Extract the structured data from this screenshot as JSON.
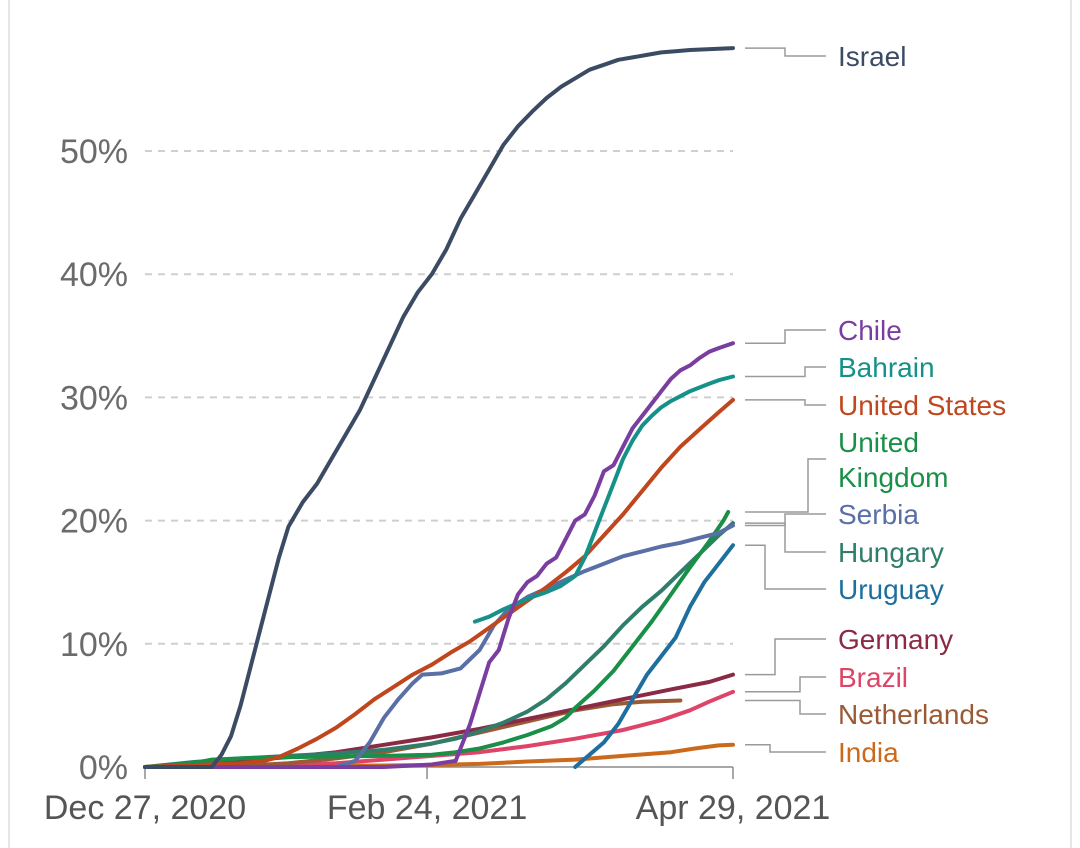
{
  "chart_data": {
    "type": "line",
    "x_labels": [
      "Dec 27, 2020",
      "Feb 24, 2021",
      "Apr 29, 2021"
    ],
    "x_label_days": [
      0,
      59,
      123
    ],
    "xlim": [
      0,
      123
    ],
    "ylim": [
      0,
      58
    ],
    "y_ticks": [
      {
        "value": 0,
        "label": "0%"
      },
      {
        "value": 10,
        "label": "10%"
      },
      {
        "value": 20,
        "label": "20%"
      },
      {
        "value": 30,
        "label": "30%"
      },
      {
        "value": 40,
        "label": "40%"
      },
      {
        "value": 50,
        "label": "50%"
      }
    ],
    "grid": true,
    "series": [
      {
        "key": "israel",
        "name": "Israel",
        "color": "#3b4b63",
        "points": [
          [
            0,
            0
          ],
          [
            6,
            0
          ],
          [
            14,
            0
          ],
          [
            16,
            1
          ],
          [
            18,
            2.5
          ],
          [
            20,
            5
          ],
          [
            22,
            8
          ],
          [
            24,
            11
          ],
          [
            26,
            14
          ],
          [
            28,
            17
          ],
          [
            30,
            19.5
          ],
          [
            33,
            21.5
          ],
          [
            36,
            23
          ],
          [
            39,
            25
          ],
          [
            42,
            27
          ],
          [
            45,
            29
          ],
          [
            48,
            31.5
          ],
          [
            51,
            34
          ],
          [
            54,
            36.5
          ],
          [
            57,
            38.5
          ],
          [
            60,
            40
          ],
          [
            63,
            42
          ],
          [
            66,
            44.5
          ],
          [
            69,
            46.5
          ],
          [
            72,
            48.5
          ],
          [
            75,
            50.5
          ],
          [
            78,
            52
          ],
          [
            81,
            53.2
          ],
          [
            84,
            54.3
          ],
          [
            87,
            55.2
          ],
          [
            90,
            55.9
          ],
          [
            93,
            56.6
          ],
          [
            96,
            57
          ],
          [
            99,
            57.4
          ],
          [
            102,
            57.6
          ],
          [
            105,
            57.8
          ],
          [
            108,
            58
          ],
          [
            111,
            58.1
          ],
          [
            114,
            58.2
          ],
          [
            117,
            58.25
          ],
          [
            120,
            58.3
          ],
          [
            123,
            58.35
          ]
        ]
      },
      {
        "key": "chile",
        "name": "Chile",
        "color": "#7a3ea0",
        "points": [
          [
            0,
            0
          ],
          [
            50,
            0
          ],
          [
            60,
            0.2
          ],
          [
            65,
            0.5
          ],
          [
            66,
            1.5
          ],
          [
            68,
            3.5
          ],
          [
            70,
            6
          ],
          [
            72,
            8.5
          ],
          [
            74,
            9.5
          ],
          [
            76,
            12
          ],
          [
            78,
            14
          ],
          [
            80,
            15
          ],
          [
            82,
            15.5
          ],
          [
            84,
            16.5
          ],
          [
            86,
            17
          ],
          [
            88,
            18.5
          ],
          [
            90,
            20
          ],
          [
            92,
            20.5
          ],
          [
            94,
            22
          ],
          [
            96,
            24
          ],
          [
            98,
            24.5
          ],
          [
            100,
            26
          ],
          [
            102,
            27.5
          ],
          [
            104,
            28.5
          ],
          [
            106,
            29.5
          ],
          [
            108,
            30.5
          ],
          [
            110,
            31.5
          ],
          [
            112,
            32.2
          ],
          [
            114,
            32.6
          ],
          [
            116,
            33.2
          ],
          [
            118,
            33.7
          ],
          [
            120,
            34
          ],
          [
            123,
            34.4
          ]
        ]
      },
      {
        "key": "bahrain",
        "name": "Bahrain",
        "color": "#16918a",
        "points": [
          [
            69,
            11.8
          ],
          [
            72,
            12.2
          ],
          [
            75,
            12.8
          ],
          [
            78,
            13.3
          ],
          [
            81,
            13.8
          ],
          [
            84,
            14.2
          ],
          [
            87,
            14.7
          ],
          [
            90,
            15.5
          ],
          [
            92,
            17
          ],
          [
            94,
            19
          ],
          [
            96,
            21
          ],
          [
            98,
            23
          ],
          [
            100,
            25
          ],
          [
            102,
            26.5
          ],
          [
            104,
            27.7
          ],
          [
            106,
            28.5
          ],
          [
            108,
            29.2
          ],
          [
            110,
            29.7
          ],
          [
            112,
            30.1
          ],
          [
            114,
            30.5
          ],
          [
            116,
            30.8
          ],
          [
            118,
            31.1
          ],
          [
            120,
            31.4
          ],
          [
            123,
            31.7
          ]
        ]
      },
      {
        "key": "us",
        "name": "United States",
        "color": "#c0461e",
        "points": [
          [
            0,
            0
          ],
          [
            20,
            0.3
          ],
          [
            25,
            0.5
          ],
          [
            28,
            0.8
          ],
          [
            32,
            1.5
          ],
          [
            36,
            2.3
          ],
          [
            40,
            3.2
          ],
          [
            44,
            4.3
          ],
          [
            48,
            5.5
          ],
          [
            52,
            6.5
          ],
          [
            56,
            7.5
          ],
          [
            60,
            8.3
          ],
          [
            64,
            9.3
          ],
          [
            68,
            10.2
          ],
          [
            72,
            11.3
          ],
          [
            76,
            12.4
          ],
          [
            80,
            13.5
          ],
          [
            84,
            14.6
          ],
          [
            88,
            15.8
          ],
          [
            92,
            17.1
          ],
          [
            96,
            18.8
          ],
          [
            100,
            20.5
          ],
          [
            104,
            22.4
          ],
          [
            108,
            24.3
          ],
          [
            112,
            26
          ],
          [
            116,
            27.4
          ],
          [
            120,
            28.8
          ],
          [
            123,
            29.8
          ]
        ]
      },
      {
        "key": "uk",
        "name": "United Kingdom",
        "color": "#1a8f47",
        "points": [
          [
            0,
            0
          ],
          [
            10,
            0.3
          ],
          [
            14,
            0.6
          ],
          [
            20,
            0.7
          ],
          [
            30,
            0.8
          ],
          [
            40,
            0.85
          ],
          [
            50,
            0.9
          ],
          [
            60,
            1.0
          ],
          [
            65,
            1.2
          ],
          [
            70,
            1.5
          ],
          [
            75,
            2.0
          ],
          [
            80,
            2.6
          ],
          [
            85,
            3.3
          ],
          [
            88,
            4.0
          ],
          [
            90,
            4.8
          ],
          [
            94,
            6.2
          ],
          [
            98,
            7.8
          ],
          [
            102,
            9.8
          ],
          [
            106,
            11.8
          ],
          [
            110,
            14.0
          ],
          [
            114,
            16.2
          ],
          [
            118,
            18.3
          ],
          [
            121,
            20.0
          ],
          [
            122,
            20.7
          ]
        ]
      },
      {
        "key": "serbia",
        "name": "Serbia",
        "color": "#5a6fa6",
        "points": [
          [
            0,
            0
          ],
          [
            40,
            0
          ],
          [
            44,
            0.5
          ],
          [
            47,
            2
          ],
          [
            50,
            4
          ],
          [
            53,
            5.5
          ],
          [
            56,
            6.8
          ],
          [
            58,
            7.5
          ],
          [
            62,
            7.6
          ],
          [
            66,
            8.0
          ],
          [
            70,
            9.5
          ],
          [
            73,
            11.5
          ],
          [
            76,
            12.8
          ],
          [
            80,
            13.8
          ],
          [
            84,
            14.5
          ],
          [
            88,
            15.2
          ],
          [
            92,
            15.9
          ],
          [
            96,
            16.5
          ],
          [
            100,
            17.1
          ],
          [
            104,
            17.5
          ],
          [
            108,
            17.9
          ],
          [
            112,
            18.2
          ],
          [
            116,
            18.6
          ],
          [
            120,
            19.0
          ],
          [
            123,
            19.6
          ]
        ]
      },
      {
        "key": "hungary",
        "name": "Hungary",
        "color": "#2f7d6b",
        "points": [
          [
            0,
            0
          ],
          [
            10,
            0.4
          ],
          [
            20,
            0.7
          ],
          [
            30,
            0.9
          ],
          [
            40,
            1.1
          ],
          [
            50,
            1.4
          ],
          [
            60,
            1.9
          ],
          [
            65,
            2.3
          ],
          [
            70,
            2.9
          ],
          [
            75,
            3.6
          ],
          [
            80,
            4.5
          ],
          [
            84,
            5.5
          ],
          [
            88,
            6.8
          ],
          [
            92,
            8.3
          ],
          [
            96,
            9.8
          ],
          [
            100,
            11.5
          ],
          [
            104,
            13
          ],
          [
            108,
            14.3
          ],
          [
            112,
            15.8
          ],
          [
            116,
            17.3
          ],
          [
            120,
            18.8
          ],
          [
            123,
            19.8
          ]
        ]
      },
      {
        "key": "uruguay",
        "name": "Uruguay",
        "color": "#1f6f9e",
        "points": [
          [
            90,
            0
          ],
          [
            93,
            1
          ],
          [
            96,
            2
          ],
          [
            99,
            3.5
          ],
          [
            102,
            5.5
          ],
          [
            105,
            7.5
          ],
          [
            108,
            9
          ],
          [
            111,
            10.5
          ],
          [
            114,
            13
          ],
          [
            117,
            15
          ],
          [
            120,
            16.5
          ],
          [
            123,
            18
          ]
        ]
      },
      {
        "key": "germany",
        "name": "Germany",
        "color": "#8b2a45",
        "points": [
          [
            0,
            0
          ],
          [
            10,
            0.2
          ],
          [
            20,
            0.5
          ],
          [
            30,
            0.8
          ],
          [
            40,
            1.2
          ],
          [
            50,
            1.8
          ],
          [
            60,
            2.4
          ],
          [
            70,
            3.1
          ],
          [
            80,
            3.9
          ],
          [
            90,
            4.7
          ],
          [
            100,
            5.5
          ],
          [
            110,
            6.3
          ],
          [
            118,
            6.9
          ],
          [
            123,
            7.5
          ]
        ]
      },
      {
        "key": "brazil",
        "name": "Brazil",
        "color": "#dd4468",
        "points": [
          [
            0,
            0
          ],
          [
            20,
            0.05
          ],
          [
            40,
            0.3
          ],
          [
            50,
            0.6
          ],
          [
            60,
            0.9
          ],
          [
            70,
            1.2
          ],
          [
            80,
            1.7
          ],
          [
            90,
            2.3
          ],
          [
            100,
            3.0
          ],
          [
            108,
            3.8
          ],
          [
            114,
            4.6
          ],
          [
            118,
            5.3
          ],
          [
            123,
            6.1
          ]
        ]
      },
      {
        "key": "netherlands",
        "name": "Netherlands",
        "color": "#9a5a35",
        "points": [
          [
            0,
            0
          ],
          [
            20,
            0.1
          ],
          [
            30,
            0.3
          ],
          [
            40,
            0.7
          ],
          [
            50,
            1.2
          ],
          [
            60,
            1.9
          ],
          [
            70,
            2.8
          ],
          [
            80,
            3.7
          ],
          [
            90,
            4.6
          ],
          [
            98,
            5.1
          ],
          [
            104,
            5.3
          ],
          [
            112,
            5.4
          ]
        ]
      },
      {
        "key": "india",
        "name": "India",
        "color": "#cc6a1b",
        "points": [
          [
            0,
            0
          ],
          [
            15,
            0
          ],
          [
            20,
            0.02
          ],
          [
            30,
            0.05
          ],
          [
            40,
            0.08
          ],
          [
            50,
            0.12
          ],
          [
            60,
            0.16
          ],
          [
            70,
            0.25
          ],
          [
            75,
            0.35
          ],
          [
            80,
            0.45
          ],
          [
            90,
            0.6
          ],
          [
            100,
            0.9
          ],
          [
            110,
            1.2
          ],
          [
            115,
            1.5
          ],
          [
            120,
            1.75
          ],
          [
            123,
            1.8
          ]
        ]
      }
    ]
  }
}
